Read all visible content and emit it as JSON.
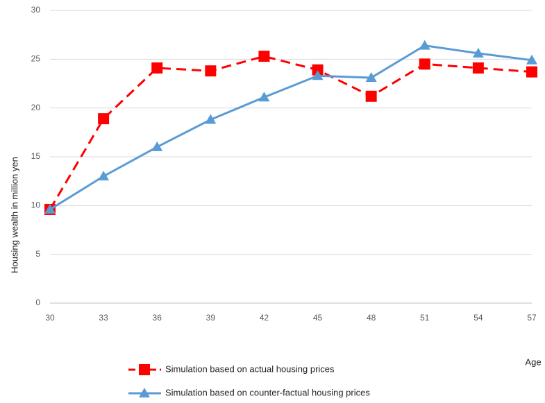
{
  "chart_data": {
    "type": "line",
    "y_label": "Housing wealth in million yen",
    "x_label": "Age",
    "x": [
      30,
      33,
      36,
      39,
      42,
      45,
      48,
      51,
      54,
      57
    ],
    "xlim": [
      30,
      57
    ],
    "xticks": [
      30,
      33,
      36,
      39,
      42,
      45,
      48,
      51,
      54,
      57
    ],
    "ylim": [
      0,
      30
    ],
    "yticks": [
      0,
      5,
      10,
      15,
      20,
      25,
      30
    ],
    "grid": true,
    "legend": "bottom",
    "series": [
      {
        "name": "Simulation based on actual housing prices",
        "color": "#ff0000",
        "dash": "dashed",
        "marker": "square",
        "values": [
          9.6,
          18.9,
          24.1,
          23.8,
          25.3,
          23.9,
          21.2,
          24.5,
          24.1,
          23.7
        ]
      },
      {
        "name": "Simulation based on counter-factual housing prices",
        "color": "#5b9bd5",
        "dash": "solid",
        "marker": "triangle",
        "values": [
          9.6,
          13.0,
          16.0,
          18.8,
          21.1,
          23.3,
          23.1,
          26.4,
          25.6,
          24.9
        ]
      }
    ]
  }
}
